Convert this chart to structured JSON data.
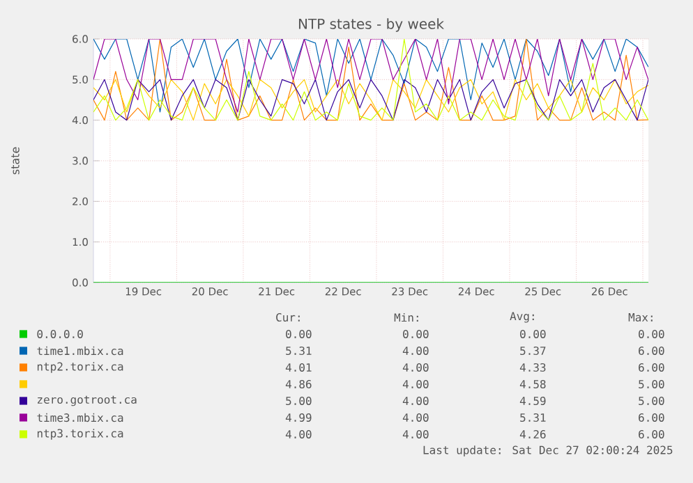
{
  "chart_data": {
    "type": "line",
    "title": "NTP states - by week",
    "ylabel": "state",
    "x": [
      "2025-12-18T18:00",
      "2025-12-18T22:00",
      "2025-12-19T02:00",
      "2025-12-19T06:00",
      "2025-12-19T10:00",
      "2025-12-19T14:00",
      "2025-12-19T18:00",
      "2025-12-19T22:00",
      "2025-12-20T02:00",
      "2025-12-20T06:00",
      "2025-12-20T10:00",
      "2025-12-20T14:00",
      "2025-12-20T18:00",
      "2025-12-20T22:00",
      "2025-12-21T02:00",
      "2025-12-21T06:00",
      "2025-12-21T10:00",
      "2025-12-21T14:00",
      "2025-12-21T18:00",
      "2025-12-21T22:00",
      "2025-12-22T02:00",
      "2025-12-22T06:00",
      "2025-12-22T10:00",
      "2025-12-22T14:00",
      "2025-12-22T18:00",
      "2025-12-22T22:00",
      "2025-12-23T02:00",
      "2025-12-23T06:00",
      "2025-12-23T10:00",
      "2025-12-23T14:00",
      "2025-12-23T18:00",
      "2025-12-23T22:00",
      "2025-12-24T02:00",
      "2025-12-24T06:00",
      "2025-12-24T10:00",
      "2025-12-24T14:00",
      "2025-12-24T18:00",
      "2025-12-24T22:00",
      "2025-12-25T02:00",
      "2025-12-25T06:00",
      "2025-12-25T10:00",
      "2025-12-25T14:00",
      "2025-12-25T18:00",
      "2025-12-25T22:00",
      "2025-12-26T02:00",
      "2025-12-26T06:00",
      "2025-12-26T10:00",
      "2025-12-26T14:00",
      "2025-12-26T18:00",
      "2025-12-26T22:00",
      "2025-12-27T02:00"
    ],
    "xlim": [
      "2025-12-18T18:00",
      "2025-12-27T02:00"
    ],
    "xticks": [
      {
        "value": "2025-12-19T00:00",
        "label": null
      },
      {
        "value": "2025-12-19T12:00",
        "label": "19 Dec"
      },
      {
        "value": "2025-12-20T00:00",
        "label": null
      },
      {
        "value": "2025-12-20T12:00",
        "label": "20 Dec"
      },
      {
        "value": "2025-12-21T00:00",
        "label": null
      },
      {
        "value": "2025-12-21T12:00",
        "label": "21 Dec"
      },
      {
        "value": "2025-12-22T00:00",
        "label": null
      },
      {
        "value": "2025-12-22T12:00",
        "label": "22 Dec"
      },
      {
        "value": "2025-12-23T00:00",
        "label": null
      },
      {
        "value": "2025-12-23T12:00",
        "label": "23 Dec"
      },
      {
        "value": "2025-12-24T00:00",
        "label": null
      },
      {
        "value": "2025-12-24T12:00",
        "label": "24 Dec"
      },
      {
        "value": "2025-12-25T00:00",
        "label": null
      },
      {
        "value": "2025-12-25T12:00",
        "label": "25 Dec"
      },
      {
        "value": "2025-12-26T00:00",
        "label": null
      },
      {
        "value": "2025-12-26T12:00",
        "label": "26 Dec"
      },
      {
        "value": "2025-12-27T00:00",
        "label": null
      }
    ],
    "ylim": [
      0,
      6
    ],
    "yticks": [
      {
        "value": 0,
        "label": "0.0"
      },
      {
        "value": 1,
        "label": "1.0"
      },
      {
        "value": 2,
        "label": "2.0"
      },
      {
        "value": 3,
        "label": "3.0"
      },
      {
        "value": 4,
        "label": "4.0"
      },
      {
        "value": 5,
        "label": "5.0"
      },
      {
        "value": 6,
        "label": "6.0"
      }
    ],
    "grid": true,
    "legend": "bottom",
    "series": [
      {
        "name": "0.0.0.0",
        "color": "#00cc00",
        "values": [
          0,
          0,
          0,
          0,
          0,
          0,
          0,
          0,
          0,
          0,
          0,
          0,
          0,
          0,
          0,
          0,
          0,
          0,
          0,
          0,
          0,
          0,
          0,
          0,
          0,
          0,
          0,
          0,
          0,
          0,
          0,
          0,
          0,
          0,
          0,
          0,
          0,
          0,
          0,
          0,
          0,
          0,
          0,
          0,
          0,
          0,
          0,
          0,
          0,
          0,
          0
        ]
      },
      {
        "name": "time1.mbix.ca",
        "color": "#0066b3",
        "values": [
          6,
          5.5,
          6,
          6,
          5,
          6,
          4.2,
          5.8,
          6,
          5.3,
          6,
          5,
          5.7,
          6,
          4.8,
          6,
          5.5,
          6,
          5.2,
          6,
          5.9,
          4.6,
          6,
          5.4,
          6,
          5,
          6,
          5.6,
          4.9,
          6,
          5.8,
          5.2,
          6,
          6,
          4.5,
          5.9,
          5.3,
          6,
          5,
          6,
          5.7,
          5.1,
          6,
          4.7,
          6,
          5.5,
          6,
          5.2,
          6,
          5.8,
          5.31
        ]
      },
      {
        "name": "ntp2.torix.ca",
        "color": "#ff8000",
        "values": [
          4.5,
          4,
          5.2,
          4,
          4.3,
          4,
          6,
          4,
          4.2,
          4.8,
          4,
          4,
          5.5,
          4,
          4.1,
          4.6,
          4,
          4,
          5,
          4,
          4.3,
          4,
          4,
          5.8,
          4,
          4.4,
          4,
          4,
          4.9,
          4,
          4.2,
          4,
          5.3,
          4,
          4,
          4.6,
          4,
          4,
          4.1,
          6,
          4,
          4.3,
          4,
          4,
          4.8,
          4,
          4.2,
          4,
          5.6,
          4,
          4.01
        ]
      },
      {
        "color": "#ffcc00",
        "values": [
          4.8,
          4.5,
          5,
          4.2,
          5,
          4.6,
          4.3,
          5,
          4.7,
          4,
          4.9,
          4.4,
          5,
          4.6,
          4.1,
          5,
          4.8,
          4.3,
          4.7,
          5,
          4.2,
          4.6,
          5,
          4.4,
          4.9,
          4.5,
          4,
          5,
          4.7,
          4.3,
          5,
          4.6,
          4.2,
          4.8,
          5,
          4.4,
          4.7,
          4,
          5,
          4.5,
          4.9,
          4.3,
          4.6,
          5,
          4.2,
          4.8,
          4.5,
          5,
          4.4,
          4.7,
          4.86
        ]
      },
      {
        "name": "zero.gotroot.ca",
        "color": "#330099",
        "values": [
          4.5,
          5,
          4.2,
          4,
          5,
          4.7,
          5,
          4,
          4.6,
          5,
          4.3,
          5,
          4.8,
          4,
          5,
          4.5,
          4.1,
          5,
          4.9,
          4.4,
          5,
          4,
          4.7,
          5,
          4.3,
          5,
          4.6,
          4,
          5,
          4.8,
          4.2,
          5,
          4.5,
          5,
          4,
          4.7,
          5,
          4.3,
          4.9,
          5,
          4.4,
          4,
          5,
          4.6,
          5,
          4.2,
          4.8,
          5,
          4.5,
          4,
          5
        ]
      },
      {
        "name": "time3.mbix.ca",
        "color": "#990099",
        "values": [
          5,
          6,
          6,
          5,
          4.5,
          6,
          6,
          5,
          5,
          6,
          6,
          6,
          5,
          4.2,
          6,
          5,
          6,
          6,
          5,
          6,
          5,
          6,
          4.8,
          6,
          5,
          6,
          6,
          5,
          5.5,
          6,
          5,
          6,
          4.4,
          6,
          6,
          5,
          6,
          5,
          6,
          5,
          6,
          4.6,
          6,
          5,
          6,
          5,
          6,
          6,
          5,
          5.8,
          4.99
        ]
      },
      {
        "name": "ntp3.torix.ca",
        "color": "#ccff00",
        "values": [
          4.2,
          4.6,
          4,
          4.3,
          5,
          4,
          4.5,
          4.1,
          4,
          4.8,
          4.3,
          4,
          4.5,
          4,
          5.2,
          4.1,
          4,
          4.4,
          4,
          4.7,
          4,
          4.2,
          4,
          4.9,
          4.1,
          4,
          4.3,
          4,
          6,
          4.2,
          4.4,
          4,
          4.6,
          4,
          4.2,
          4,
          4.5,
          4.1,
          4,
          5,
          4.3,
          4,
          4.6,
          4,
          4.2,
          5.4,
          4,
          4.3,
          4,
          4.5,
          4
        ]
      }
    ],
    "annotations": [
      "Cur:",
      "Min:",
      "Avg:",
      "Max:",
      "0.00",
      "0.00",
      "0.00",
      "0.00",
      "5.31",
      "4.00",
      "5.37",
      "6.00",
      "4.01",
      "4.00",
      "4.33",
      "6.00",
      "4.86",
      "4.00",
      "4.58",
      "5.00",
      "5.00",
      "4.00",
      "4.59",
      "5.00",
      "4.99",
      "4.00",
      "5.31",
      "6.00",
      "4.00",
      "4.00",
      "4.26",
      "6.00",
      "Last update: Sat Dec 27 02:00:24 2025"
    ]
  }
}
